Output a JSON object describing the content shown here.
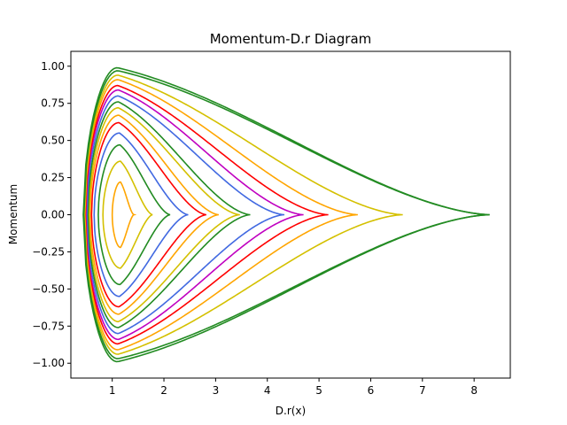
{
  "chart_data": {
    "type": "line",
    "title": "Momentum-D.r Diagram",
    "xlabel": "D.r(x)",
    "ylabel": "Momentum",
    "xlim": [
      0.2,
      8.7
    ],
    "ylim": [
      -1.1,
      1.1
    ],
    "xticks": [
      1,
      2,
      3,
      4,
      5,
      6,
      7,
      8
    ],
    "xtick_labels": [
      "1",
      "2",
      "3",
      "4",
      "5",
      "6",
      "7",
      "8"
    ],
    "yticks": [
      -1.0,
      -0.75,
      -0.5,
      -0.25,
      0.0,
      0.25,
      0.5,
      0.75,
      1.0
    ],
    "ytick_labels": [
      "−1.00",
      "−0.75",
      "−0.50",
      "−0.25",
      "0.00",
      "0.25",
      "0.50",
      "0.75",
      "1.00"
    ],
    "grid": false,
    "legend": "none",
    "series": [
      {
        "color": "#FFA500",
        "values": [
          [
            1.0,
            0.0
          ],
          [
            1.16,
            0.22
          ],
          [
            1.42,
            0.0
          ]
        ]
      },
      {
        "color": "#D4C000",
        "values": [
          [
            0.82,
            0.0
          ],
          [
            1.16,
            0.36
          ],
          [
            1.78,
            0.0
          ]
        ]
      },
      {
        "color": "#228B22",
        "values": [
          [
            0.73,
            0.0
          ],
          [
            1.15,
            0.47
          ],
          [
            2.12,
            0.0
          ]
        ]
      },
      {
        "color": "#4169E1",
        "values": [
          [
            0.65,
            0.0
          ],
          [
            1.14,
            0.55
          ],
          [
            2.47,
            0.0
          ]
        ]
      },
      {
        "color": "#FF0000",
        "values": [
          [
            0.6,
            0.0
          ],
          [
            1.13,
            0.62
          ],
          [
            2.82,
            0.0
          ]
        ]
      },
      {
        "color": "#FFA500",
        "values": [
          [
            0.57,
            0.0
          ],
          [
            1.13,
            0.67
          ],
          [
            3.06,
            0.0
          ]
        ]
      },
      {
        "color": "#D4C000",
        "values": [
          [
            0.55,
            0.0
          ],
          [
            1.12,
            0.72
          ],
          [
            3.47,
            0.0
          ]
        ]
      },
      {
        "color": "#228B22",
        "values": [
          [
            0.53,
            0.0
          ],
          [
            1.12,
            0.76
          ],
          [
            3.67,
            0.0
          ]
        ]
      },
      {
        "color": "#4169E1",
        "values": [
          [
            0.51,
            0.0
          ],
          [
            1.12,
            0.8
          ],
          [
            4.33,
            0.0
          ]
        ]
      },
      {
        "color": "#C000C0",
        "values": [
          [
            0.49,
            0.0
          ],
          [
            1.12,
            0.84
          ],
          [
            4.7,
            0.0
          ]
        ]
      },
      {
        "color": "#FF0000",
        "values": [
          [
            0.48,
            0.0
          ],
          [
            1.11,
            0.87
          ],
          [
            5.18,
            0.0
          ]
        ]
      },
      {
        "color": "#FFA500",
        "values": [
          [
            0.47,
            0.0
          ],
          [
            1.11,
            0.91
          ],
          [
            5.75,
            0.0
          ]
        ]
      },
      {
        "color": "#D4C000",
        "values": [
          [
            0.46,
            0.0
          ],
          [
            1.11,
            0.94
          ],
          [
            6.62,
            0.0
          ]
        ]
      },
      {
        "color": "#228B22",
        "values": [
          [
            0.45,
            0.0
          ],
          [
            1.11,
            0.97
          ],
          [
            8.3,
            0.0
          ]
        ]
      },
      {
        "color": "#228B22",
        "values": [
          [
            0.44,
            0.0
          ],
          [
            1.1,
            0.99
          ],
          [
            8.3,
            0.0
          ]
        ]
      }
    ]
  }
}
